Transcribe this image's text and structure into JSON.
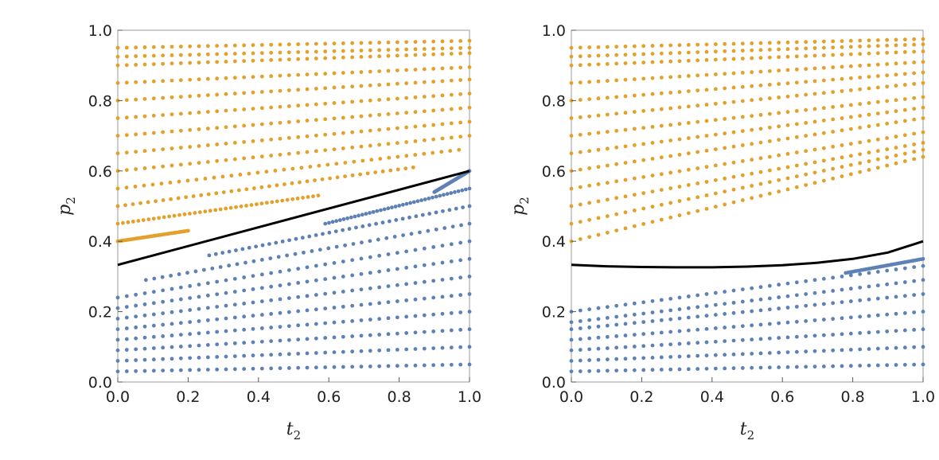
{
  "colors": {
    "region_above": "#E3A02A",
    "region_below": "#5E81B5",
    "boundary": "#000000",
    "frame": "#9a9a9a"
  },
  "chart_data": [
    {
      "type": "scatter",
      "xlabel": "t",
      "xlabel_sub": "2",
      "ylabel": "p",
      "ylabel_sub": "2",
      "xlim": [
        0,
        1
      ],
      "ylim": [
        0,
        1
      ],
      "xticks": [
        "0.0",
        "0.2",
        "0.4",
        "0.6",
        "0.8",
        "1.0"
      ],
      "yticks": [
        "0.0",
        "0.2",
        "0.4",
        "0.6",
        "0.8",
        "1.0"
      ],
      "grid": false,
      "boundary": {
        "type": "line",
        "x": [
          0,
          1
        ],
        "y": [
          0.333,
          0.6
        ]
      },
      "series": [
        {
          "region": "above",
          "rows": [
            {
              "p0": 0.95,
              "p1": 0.97,
              "x0": 0.0,
              "x1": 1.0
            },
            {
              "p0": 0.925,
              "p1": 0.95,
              "x0": 0.0,
              "x1": 1.0
            },
            {
              "p0": 0.9,
              "p1": 0.935,
              "x0": 0.0,
              "x1": 1.0
            },
            {
              "p0": 0.85,
              "p1": 0.895,
              "x0": 0.0,
              "x1": 1.0
            },
            {
              "p0": 0.8,
              "p1": 0.86,
              "x0": 0.0,
              "x1": 1.0
            },
            {
              "p0": 0.75,
              "p1": 0.82,
              "x0": 0.0,
              "x1": 1.0
            },
            {
              "p0": 0.7,
              "p1": 0.78,
              "x0": 0.0,
              "x1": 1.0
            },
            {
              "p0": 0.65,
              "p1": 0.74,
              "x0": 0.0,
              "x1": 1.0
            },
            {
              "p0": 0.6,
              "p1": 0.7,
              "x0": 0.0,
              "x1": 1.0
            },
            {
              "p0": 0.55,
              "p1": 0.66,
              "x0": 0.0,
              "x1": 0.97
            },
            {
              "p0": 0.5,
              "p1": 0.61,
              "x0": 0.0,
              "x1": 0.84
            },
            {
              "p0": 0.45,
              "p1": 0.53,
              "x0": 0.0,
              "x1": 0.57
            },
            {
              "p0": 0.4,
              "p1": 0.43,
              "x0": 0.0,
              "x1": 0.2
            }
          ]
        },
        {
          "region": "below",
          "rows": [
            {
              "p0": 0.03,
              "p1": 0.05,
              "x0": 0.0,
              "x1": 1.0
            },
            {
              "p0": 0.06,
              "p1": 0.1,
              "x0": 0.0,
              "x1": 1.0
            },
            {
              "p0": 0.09,
              "p1": 0.15,
              "x0": 0.0,
              "x1": 1.0
            },
            {
              "p0": 0.12,
              "p1": 0.2,
              "x0": 0.0,
              "x1": 1.0
            },
            {
              "p0": 0.15,
              "p1": 0.25,
              "x0": 0.0,
              "x1": 1.0
            },
            {
              "p0": 0.18,
              "p1": 0.3,
              "x0": 0.0,
              "x1": 1.0
            },
            {
              "p0": 0.21,
              "p1": 0.35,
              "x0": 0.0,
              "x1": 1.0
            },
            {
              "p0": 0.24,
              "p1": 0.4,
              "x0": 0.0,
              "x1": 1.0
            },
            {
              "p0": 0.29,
              "p1": 0.45,
              "x0": 0.08,
              "x1": 1.0
            },
            {
              "p0": 0.36,
              "p1": 0.5,
              "x0": 0.26,
              "x1": 1.0
            },
            {
              "p0": 0.45,
              "p1": 0.55,
              "x0": 0.59,
              "x1": 1.0
            },
            {
              "p0": 0.54,
              "p1": 0.6,
              "x0": 0.9,
              "x1": 1.0
            }
          ]
        }
      ]
    },
    {
      "type": "scatter",
      "xlabel": "t",
      "xlabel_sub": "2",
      "ylabel": "p",
      "ylabel_sub": "2",
      "xlim": [
        0,
        1
      ],
      "ylim": [
        0,
        1
      ],
      "xticks": [
        "0.0",
        "0.2",
        "0.4",
        "0.6",
        "0.8",
        "1.0"
      ],
      "yticks": [
        "0.0",
        "0.2",
        "0.4",
        "0.6",
        "0.8",
        "1.0"
      ],
      "grid": false,
      "boundary": {
        "type": "curve",
        "x": [
          0,
          0.1,
          0.2,
          0.3,
          0.4,
          0.5,
          0.6,
          0.7,
          0.8,
          0.9,
          1.0
        ],
        "y": [
          0.333,
          0.329,
          0.327,
          0.326,
          0.326,
          0.328,
          0.332,
          0.339,
          0.35,
          0.368,
          0.4
        ]
      },
      "series": [
        {
          "region": "above",
          "rows": [
            {
              "p0": 0.95,
              "p1": 0.975,
              "x0": 0.0,
              "x1": 1.0
            },
            {
              "p0": 0.925,
              "p1": 0.96,
              "x0": 0.0,
              "x1": 1.0
            },
            {
              "p0": 0.9,
              "p1": 0.94,
              "x0": 0.0,
              "x1": 1.0
            },
            {
              "p0": 0.85,
              "p1": 0.91,
              "x0": 0.0,
              "x1": 1.0
            },
            {
              "p0": 0.8,
              "p1": 0.88,
              "x0": 0.0,
              "x1": 1.0
            },
            {
              "p0": 0.75,
              "p1": 0.85,
              "x0": 0.0,
              "x1": 1.0
            },
            {
              "p0": 0.7,
              "p1": 0.81,
              "x0": 0.0,
              "x1": 1.0
            },
            {
              "p0": 0.65,
              "p1": 0.78,
              "x0": 0.0,
              "x1": 1.0
            },
            {
              "p0": 0.6,
              "p1": 0.75,
              "x0": 0.0,
              "x1": 1.0
            },
            {
              "p0": 0.55,
              "p1": 0.71,
              "x0": 0.0,
              "x1": 1.0
            },
            {
              "p0": 0.5,
              "p1": 0.68,
              "x0": 0.0,
              "x1": 1.0
            },
            {
              "p0": 0.45,
              "p1": 0.66,
              "x0": 0.0,
              "x1": 1.0
            },
            {
              "p0": 0.4,
              "p1": 0.64,
              "x0": 0.0,
              "x1": 1.0
            }
          ]
        },
        {
          "region": "below",
          "rows": [
            {
              "p0": 0.03,
              "p1": 0.05,
              "x0": 0.0,
              "x1": 1.0
            },
            {
              "p0": 0.06,
              "p1": 0.1,
              "x0": 0.0,
              "x1": 1.0
            },
            {
              "p0": 0.09,
              "p1": 0.15,
              "x0": 0.0,
              "x1": 1.0
            },
            {
              "p0": 0.12,
              "p1": 0.2,
              "x0": 0.0,
              "x1": 1.0
            },
            {
              "p0": 0.15,
              "p1": 0.25,
              "x0": 0.0,
              "x1": 1.0
            },
            {
              "p0": 0.17,
              "p1": 0.29,
              "x0": 0.0,
              "x1": 1.0
            },
            {
              "p0": 0.2,
              "p1": 0.33,
              "x0": 0.0,
              "x1": 1.0
            },
            {
              "p0": 0.31,
              "p1": 0.35,
              "x0": 0.78,
              "x1": 1.0
            }
          ]
        }
      ]
    }
  ]
}
